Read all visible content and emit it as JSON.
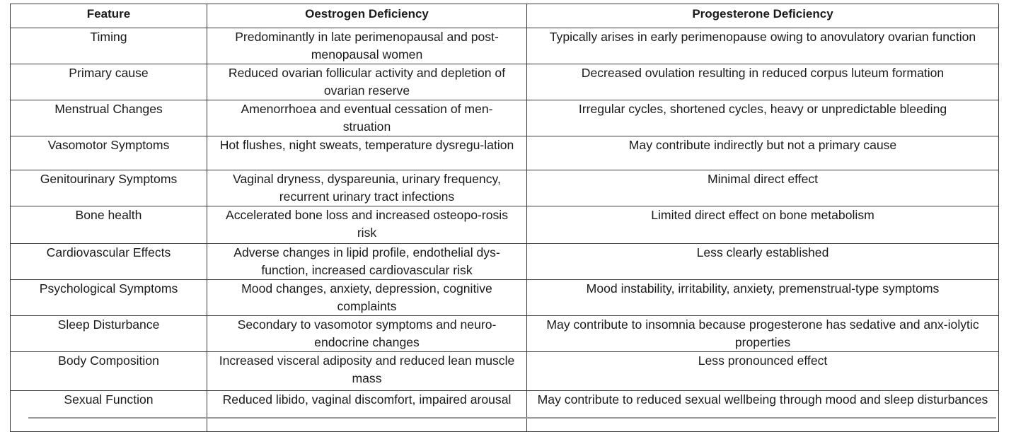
{
  "table": {
    "headers": [
      "Feature",
      "Oestrogen Deficiency",
      "Progesterone Deficiency"
    ],
    "rows": [
      {
        "feature": "Timing",
        "oestrogen": "Predominantly in late perimenopausal and post-menopausal women",
        "progesterone": "Typically arises in early perimenopause owing to anovulatory ovarian function"
      },
      {
        "feature": "Primary cause",
        "oestrogen": "Reduced ovarian follicular activity and depletion of ovarian reserve",
        "progesterone": "Decreased ovulation resulting in reduced corpus luteum formation"
      },
      {
        "feature": "Menstrual Changes",
        "oestrogen": "Amenorrhoea and eventual cessation of men-struation",
        "progesterone": "Irregular cycles, shortened cycles, heavy or unpredictable bleeding"
      },
      {
        "feature": "Vasomotor Symptoms",
        "oestrogen": "Hot flushes, night sweats, temperature dysregu-lation",
        "progesterone": "May contribute indirectly but not a primary cause"
      },
      {
        "feature": "Genitourinary Symptoms",
        "oestrogen": "Vaginal dryness, dyspareunia, urinary frequency, recurrent urinary tract infections",
        "progesterone": "Minimal direct effect"
      },
      {
        "feature": "Bone health",
        "oestrogen": "Accelerated bone loss and increased osteopo-rosis risk",
        "progesterone": "Limited direct effect on bone metabolism"
      },
      {
        "feature": "Cardiovascular Effects",
        "oestrogen": "Adverse changes in lipid profile, endothelial dys-function, increased cardiovascular risk",
        "progesterone": "Less clearly established"
      },
      {
        "feature": "Psychological Symptoms",
        "oestrogen": "Mood changes, anxiety, depression, cognitive complaints",
        "progesterone": "Mood instability, irritability, anxiety, premenstrual-type symptoms"
      },
      {
        "feature": "Sleep Disturbance",
        "oestrogen": "Secondary to vasomotor symptoms and neuro-endocrine changes",
        "progesterone": "May contribute to insomnia because progesterone has sedative and anx-iolytic properties"
      },
      {
        "feature": "Body Composition",
        "oestrogen": "Increased visceral adiposity and reduced lean muscle mass",
        "progesterone": "Less pronounced effect"
      },
      {
        "feature": "Sexual Function",
        "oestrogen": "Reduced libido, vaginal discomfort, impaired arousal",
        "progesterone": "May contribute to reduced sexual wellbeing through mood and sleep disturbances"
      }
    ]
  }
}
